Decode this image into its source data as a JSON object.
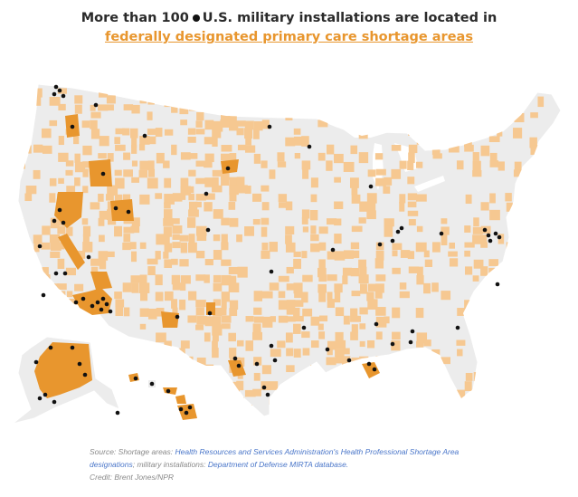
{
  "title": {
    "line1_prefix": "More than 100",
    "line1_suffix": "U.S. military installations  are located in",
    "line2_link": "federally designated primary care shortage areas"
  },
  "legend": {
    "installation_marker": "black dot",
    "primary_shortage_color": "#e8962e",
    "partial_shortage_color": "#f6c891",
    "land_color": "#ececec"
  },
  "footer": {
    "source_prefix": "Source: Shortage areas: ",
    "source_link1": "Health Resources and Services Administration's Health Professional Shortage Area designations",
    "source_mid": "; military installations: ",
    "source_link2": "Department of Defense MIRTA database.",
    "credit": "Credit: Brent Jones/NPR"
  }
}
